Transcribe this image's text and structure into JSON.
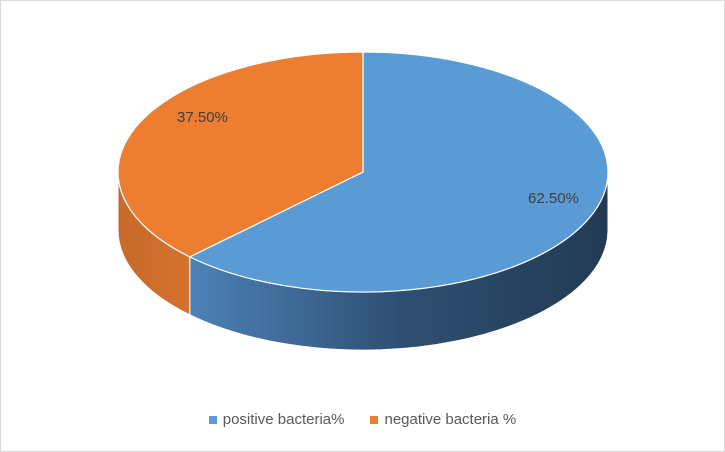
{
  "chart_data": {
    "type": "pie",
    "style": "3d",
    "series": [
      {
        "name": "positive bacteria%",
        "value": 62.5,
        "label": "62.50%",
        "color": "#5B9BD5",
        "side_color": "#2E4C6E"
      },
      {
        "name": "negative bacteria %",
        "value": 37.5,
        "label": "37.50%",
        "color": "#ED7D31",
        "side_color": "#B85F22"
      }
    ],
    "legend_position": "bottom",
    "title": ""
  }
}
